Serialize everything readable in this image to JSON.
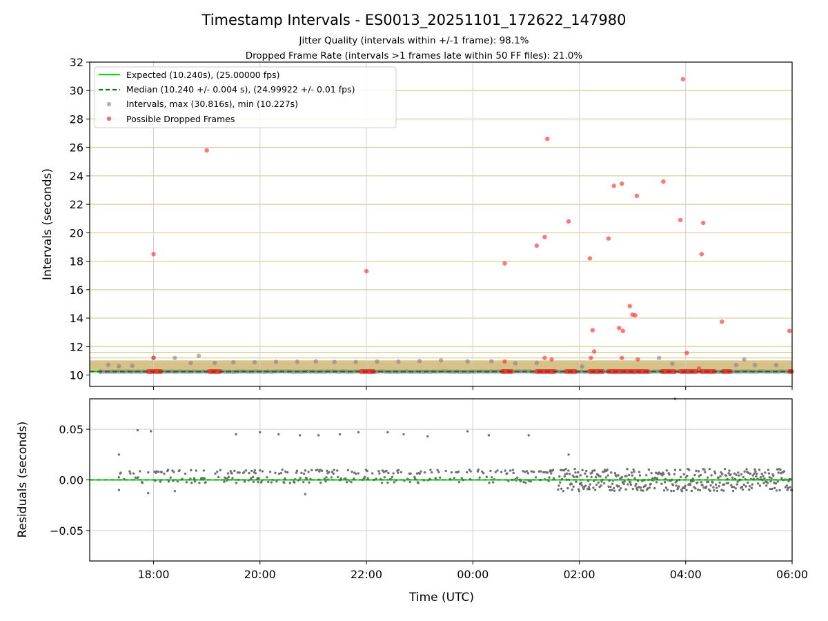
{
  "chart_data": [
    {
      "type": "scatter",
      "title": "Timestamp Intervals - ES0013_20251101_172622_147980",
      "subtitle_lines": [
        "Jitter Quality (intervals within +/-1 frame): 98.1%",
        "Dropped Frame Rate (intervals >1 frames late within 50 FF files): 21.0%"
      ],
      "ylabel": "Intervals (seconds)",
      "ylim": [
        9.2,
        32
      ],
      "yticks": [
        10,
        12,
        14,
        16,
        18,
        20,
        22,
        24,
        26,
        28,
        30,
        32
      ],
      "xlim_hours": [
        -7.2,
        6.0
      ],
      "xticks_hours": [
        -6,
        -4,
        -2,
        0,
        2,
        4,
        6
      ],
      "frame_lines": [
        10.24,
        10.28,
        10.32,
        10.36,
        10.4,
        10.44,
        10.48,
        10.52,
        10.56,
        10.6,
        10.64,
        10.68,
        10.72,
        10.76,
        10.8,
        10.84,
        10.88,
        10.92,
        10.96,
        11.0,
        11.2,
        11.6,
        12.0,
        14.0,
        16.0,
        18.0,
        20.0,
        22.0,
        24.0,
        26.0,
        28.0,
        30.0
      ],
      "frame_line_color": "#d4c186",
      "expected_line": {
        "value": 10.24,
        "label": "Expected (10.240s), (25.00000 fps)",
        "color": "#00e000"
      },
      "median_line": {
        "value": 10.24,
        "label": "Median (10.240 +/- 0.004 s), (24.99922 +/- 0.01 fps)",
        "color": "#008000"
      },
      "intervals": {
        "label": "Intervals, max (30.816s), min (10.227s)",
        "color": "#808080",
        "points": [
          [
            -7.0,
            10.24
          ],
          [
            -6.85,
            10.72
          ],
          [
            -6.65,
            10.62
          ],
          [
            -6.4,
            10.65
          ],
          [
            -6.0,
            11.22
          ],
          [
            -5.6,
            11.2
          ],
          [
            -5.3,
            10.85
          ],
          [
            -5.15,
            11.35
          ],
          [
            -4.85,
            10.85
          ],
          [
            -4.5,
            10.9
          ],
          [
            -4.1,
            10.9
          ],
          [
            -3.7,
            10.93
          ],
          [
            -3.3,
            10.93
          ],
          [
            -2.95,
            10.96
          ],
          [
            -2.6,
            10.92
          ],
          [
            -2.2,
            10.92
          ],
          [
            -1.8,
            10.95
          ],
          [
            -1.4,
            10.94
          ],
          [
            -1.0,
            10.98
          ],
          [
            -0.6,
            11.03
          ],
          [
            -0.1,
            10.96
          ],
          [
            0.35,
            10.97
          ],
          [
            0.8,
            10.82
          ],
          [
            1.2,
            10.85
          ],
          [
            2.05,
            10.6
          ],
          [
            3.5,
            11.2
          ],
          [
            3.75,
            10.8
          ],
          [
            4.95,
            10.7
          ],
          [
            5.1,
            11.1
          ],
          [
            5.3,
            10.7
          ],
          [
            5.7,
            10.7
          ]
        ]
      },
      "dropped": {
        "label": "Possible Dropped Frames",
        "color": "#ff3030",
        "points": [
          [
            -5.0,
            25.8
          ],
          [
            -6.0,
            18.5
          ],
          [
            -6.0,
            11.2
          ],
          [
            -2.0,
            17.3
          ],
          [
            0.6,
            17.85
          ],
          [
            1.2,
            19.1
          ],
          [
            1.35,
            19.7
          ],
          [
            1.4,
            26.6
          ],
          [
            1.8,
            20.8
          ],
          [
            2.2,
            18.2
          ],
          [
            2.25,
            13.15
          ],
          [
            2.28,
            11.65
          ],
          [
            2.22,
            11.2
          ],
          [
            2.55,
            19.6
          ],
          [
            2.65,
            23.3
          ],
          [
            2.8,
            23.45
          ],
          [
            2.75,
            13.3
          ],
          [
            2.82,
            13.1
          ],
          [
            2.8,
            11.2
          ],
          [
            2.95,
            14.85
          ],
          [
            3.0,
            14.25
          ],
          [
            3.05,
            14.2
          ],
          [
            3.08,
            22.6
          ],
          [
            3.1,
            11.1
          ],
          [
            3.58,
            23.6
          ],
          [
            3.9,
            20.9
          ],
          [
            3.95,
            30.8
          ],
          [
            4.02,
            11.55
          ],
          [
            4.3,
            18.5
          ],
          [
            4.33,
            20.7
          ],
          [
            4.68,
            13.75
          ],
          [
            5.95,
            13.1
          ],
          [
            0.6,
            10.95
          ],
          [
            1.35,
            11.2
          ],
          [
            1.48,
            11.1
          ],
          [
            4.25,
            10.45
          ]
        ],
        "clusters_hours": [
          [
            -6.1,
            -5.85
          ],
          [
            -4.95,
            -4.75
          ],
          [
            -2.1,
            -1.85
          ],
          [
            0.55,
            0.75
          ],
          [
            1.2,
            1.55
          ],
          [
            1.75,
            1.95
          ],
          [
            2.2,
            2.45
          ],
          [
            2.55,
            3.3
          ],
          [
            3.55,
            3.8
          ],
          [
            3.9,
            4.2
          ],
          [
            4.3,
            4.55
          ],
          [
            4.7,
            4.85
          ],
          [
            5.95,
            6.0
          ]
        ]
      },
      "legend_position": "upper-left"
    },
    {
      "type": "scatter",
      "ylabel": "Residuals (seconds)",
      "xlabel": "Time (UTC)",
      "ylim": [
        -0.08,
        0.08
      ],
      "yticks": [
        -0.05,
        0.0,
        0.05
      ],
      "ytick_labels": [
        "−0.05",
        "0.00",
        "0.05"
      ],
      "xlim_hours": [
        -7.2,
        6.0
      ],
      "xticks_hours": [
        -6,
        -4,
        -2,
        0,
        2,
        4,
        6
      ],
      "xtick_labels": [
        "18:00",
        "20:00",
        "22:00",
        "00:00",
        "02:00",
        "04:00",
        "06:00"
      ],
      "zero_line_color": "#00e000",
      "median_line_color": "#008000",
      "residual_color": "#707070",
      "outliers": [
        [
          -6.3,
          0.049
        ],
        [
          -6.05,
          0.048
        ],
        [
          -4.45,
          0.045
        ],
        [
          -4.0,
          0.047
        ],
        [
          -3.65,
          0.045
        ],
        [
          -3.25,
          0.044
        ],
        [
          -2.9,
          0.044
        ],
        [
          -2.5,
          0.045
        ],
        [
          -2.15,
          0.047
        ],
        [
          -1.6,
          0.047
        ],
        [
          -1.3,
          0.045
        ],
        [
          -0.85,
          0.043
        ],
        [
          -0.1,
          0.048
        ],
        [
          0.3,
          0.044
        ],
        [
          1.05,
          0.044
        ],
        [
          -6.65,
          0.025
        ],
        [
          1.8,
          0.025
        ],
        [
          3.8,
          0.08
        ],
        [
          -3.15,
          -0.014
        ],
        [
          -6.1,
          -0.013
        ],
        [
          -6.65,
          -0.01
        ],
        [
          -5.6,
          -0.011
        ]
      ]
    }
  ]
}
